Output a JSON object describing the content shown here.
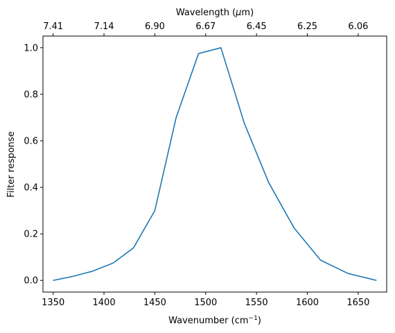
{
  "chart_data": {
    "type": "line",
    "xlabel": "Wavenumber (cm",
    "xlabel_sup": "−1",
    "xlabel_close": ")",
    "ylabel": "Filter response",
    "top_xlabel": "Wavelength (",
    "top_xlabel_mu": "μ",
    "top_xlabel_unit": "m)",
    "xlim": [
      1340,
      1678
    ],
    "ylim": [
      -0.05,
      1.05
    ],
    "x_ticks": [
      1350,
      1400,
      1450,
      1500,
      1550,
      1600,
      1650
    ],
    "y_ticks": [
      0.0,
      0.2,
      0.4,
      0.6,
      0.8,
      1.0
    ],
    "y_tick_labels": [
      "0.0",
      "0.2",
      "0.4",
      "0.6",
      "0.8",
      "1.0"
    ],
    "top_ticks_wavenumber": [
      1350,
      1400,
      1450,
      1500,
      1550,
      1600,
      1650
    ],
    "top_tick_labels": [
      "7.41",
      "7.14",
      "6.90",
      "6.67",
      "6.45",
      "6.25",
      "6.06"
    ],
    "grid": false,
    "series": [
      {
        "color": "#1f77b4",
        "x": [
          1350,
          1369,
          1389,
          1409,
          1429,
          1450,
          1471,
          1493,
          1515,
          1538,
          1562,
          1587,
          1613,
          1640,
          1668
        ],
        "y": [
          0.0,
          0.017,
          0.04,
          0.075,
          0.14,
          0.3,
          0.7,
          0.975,
          1.0,
          0.675,
          0.42,
          0.225,
          0.087,
          0.03,
          0.0
        ]
      }
    ]
  }
}
